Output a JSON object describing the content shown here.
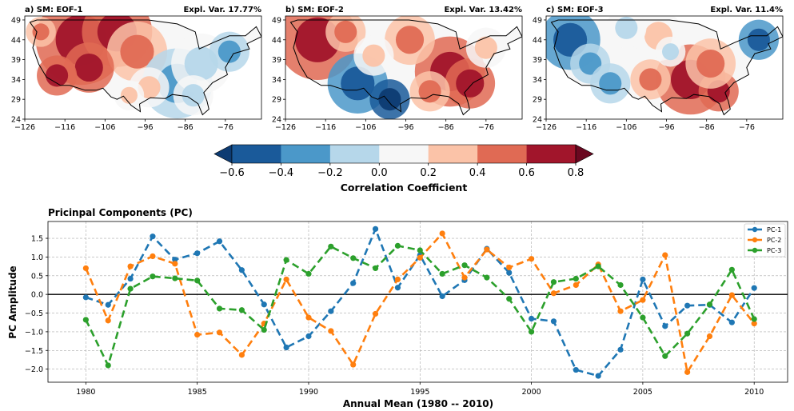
{
  "maps": [
    {
      "title": "a) SM: EOF-1",
      "expl": "Expl. Var. 17.77%"
    },
    {
      "title": "b) SM: EOF-2",
      "expl": "Expl. Var. 13.42%"
    },
    {
      "title": "c) SM: EOF-3",
      "expl": "Expl. Var. 11.4%"
    }
  ],
  "map_axes": {
    "lat_ticks": [
      "49",
      "44",
      "39",
      "34",
      "29",
      "24"
    ],
    "lon_ticks": [
      "−126",
      "−116",
      "−106",
      "−96",
      "−86",
      "−76"
    ]
  },
  "colorbar": {
    "label": "Correlation Coefficient",
    "ticks": [
      "−0.6",
      "−0.4",
      "−0.2",
      "0.0",
      "0.2",
      "0.4",
      "0.6",
      "0.8"
    ],
    "colors": [
      "#0d3b72",
      "#1a5a9a",
      "#4b98c9",
      "#b6d7ea",
      "#f7f7f7",
      "#fbc3a8",
      "#e06a54",
      "#a1152b",
      "#6a0820"
    ]
  },
  "chart_data": {
    "type": "line",
    "title": "Pricinpal Components (PC)",
    "xlabel": "Annual Mean (1980 -- 2010)",
    "ylabel": "PC Amplitude",
    "xlim": [
      1978.3,
      2011.5
    ],
    "ylim": [
      -2.35,
      1.95
    ],
    "xticks": [
      1980,
      1985,
      1990,
      1995,
      2000,
      2005,
      2010
    ],
    "yticks": [
      1.5,
      1.0,
      0.5,
      0.0,
      -0.5,
      -1.0,
      -1.5,
      -2.0
    ],
    "ytick_labels": [
      "1.5",
      "1.0",
      "0.5",
      "0.0",
      "−0.5",
      "−1.0",
      "−1.5",
      "−2.0"
    ],
    "x": [
      1980,
      1981,
      1982,
      1983,
      1984,
      1985,
      1986,
      1987,
      1988,
      1989,
      1990,
      1991,
      1992,
      1993,
      1994,
      1995,
      1996,
      1997,
      1998,
      1999,
      2000,
      2001,
      2002,
      2003,
      2004,
      2005,
      2006,
      2007,
      2008,
      2009,
      2010
    ],
    "series": [
      {
        "name": "PC-1",
        "color": "#1f77b4",
        "values": [
          -0.08,
          -0.28,
          0.42,
          1.55,
          0.93,
          1.1,
          1.42,
          0.65,
          -0.27,
          -1.42,
          -1.12,
          -0.45,
          0.3,
          1.75,
          0.18,
          1.05,
          -0.05,
          0.38,
          1.22,
          0.58,
          -0.65,
          -0.72,
          -2.02,
          -2.18,
          -1.48,
          0.4,
          -0.85,
          -0.3,
          -0.28,
          -0.75,
          0.17
        ]
      },
      {
        "name": "PC-2",
        "color": "#ff7f0e",
        "values": [
          0.7,
          -0.7,
          0.75,
          1.02,
          0.82,
          -1.08,
          -1.02,
          -1.62,
          -0.78,
          0.4,
          -0.62,
          -0.98,
          -1.88,
          -0.52,
          0.4,
          0.98,
          1.63,
          0.45,
          1.2,
          0.72,
          0.95,
          0.03,
          0.25,
          0.8,
          -0.45,
          -0.15,
          1.05,
          -2.08,
          -1.12,
          -0.02,
          -0.78
        ]
      },
      {
        "name": "PC-3",
        "color": "#2ca02c",
        "values": [
          -0.68,
          -1.9,
          0.15,
          0.48,
          0.43,
          0.37,
          -0.38,
          -0.42,
          -0.95,
          0.92,
          0.55,
          1.28,
          0.97,
          0.7,
          1.3,
          1.18,
          0.55,
          0.78,
          0.45,
          -0.12,
          -1.0,
          0.33,
          0.42,
          0.75,
          0.25,
          -0.62,
          -1.65,
          -1.05,
          -0.27,
          0.66,
          -0.66
        ]
      }
    ]
  }
}
